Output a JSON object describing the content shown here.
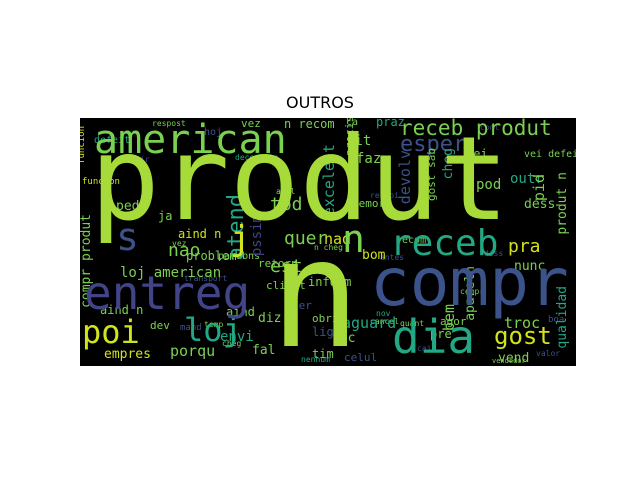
{
  "title": "OUTROS",
  "colors": {
    "background": "#000000",
    "lime": "#a6db3a",
    "indigo": "#414487",
    "blue": "#3b528b",
    "teal": "#23888e",
    "green": "#22a884",
    "light_green": "#7ad151",
    "yellow": "#d2e21b",
    "purple": "#482878"
  },
  "words": {
    "produt": "produt",
    "n_big": "n",
    "compr": "compr",
    "entreg": "entreg",
    "american": "american",
    "s": "s",
    "loj": "loj",
    "dia": "dia",
    "recebe": "receb",
    "n_mid": "n",
    "poi": "poi",
    "receb_produt": "receb produt",
    "esper": "esper",
    "j": "j",
    "atend": "atend",
    "quer": "quer",
    "pra": "pra",
    "gost": "gost",
    "est": "est",
    "nao": "nao",
    "loj_american": "loj american",
    "compr_produt": "compr produt",
    "problem": "problem",
    "ped": "ped",
    "ja": "ja",
    "aind_n": "aind n",
    "aind_n2": "aind n",
    "aind": "aind",
    "parab": "parab",
    "ns": "ns",
    "porqu": "porqu",
    "empres": "empres",
    "envi": "envi",
    "dev": "dev",
    "nad": "nad",
    "bom": "bom",
    "aguard": "aguard",
    "tod": "tod",
    "vez": "vez",
    "n_recom": "n recom",
    "hoj": "hoj",
    "respost": "respost",
    "defeit": "defeit",
    "excelent": "excelent",
    "sit": "sit",
    "faz": "faz",
    "devolv": "devolv",
    "vei": "vei",
    "outr": "outr",
    "cheg": "cheg",
    "pod": "pod",
    "pid": "pid",
    "produt_n": "produt n",
    "dess": "dess",
    "nunc": "nunc",
    "troc": "troc",
    "bem": "bem",
    "vend": "vend",
    "qualidad": "qualidad",
    "aparelh": "aparelh",
    "fic": "fic",
    "tim": "tim",
    "fal": "fal",
    "diz": "diz",
    "retorn": "retorn",
    "inform": "inform",
    "lig": "lig",
    "obrig": "obrig",
    "ter": "ter",
    "client": "client",
    "recom": "recom",
    "precis": "precis",
    "ca": "ca",
    "praz": "praz",
    "demor": "demor",
    "vei_defeit": "vei defeit",
    "agor": "agor",
    "pre": "pre",
    "celul": "celul",
    "gost_sab": "gost sab",
    "possim": "pssim",
    "funcion": "funcion",
    "temp": "temp",
    "mand": "mand",
    "quant": "quant",
    "caix": "caix",
    "boa": "boa",
    "valor": "valor",
    "vendedor": "vendedor",
    "nenhum": "nenhum",
    "transport": "transport",
    "decepcion": "decepcion",
    "primeir": "primeir",
    "aval": "aval",
    "nov": "nov",
    "cancel": "cancel",
    "diss": "diss",
    "cont": "cont",
    "compr_small": "compr",
    "n_small": "n cheg",
    "antes": "antes",
    "entreg_small": "entreg",
    "receb_small": "recebi",
    "vez_small": "vez",
    "cheg_small": "cheg",
    "sobr": "sobr"
  }
}
